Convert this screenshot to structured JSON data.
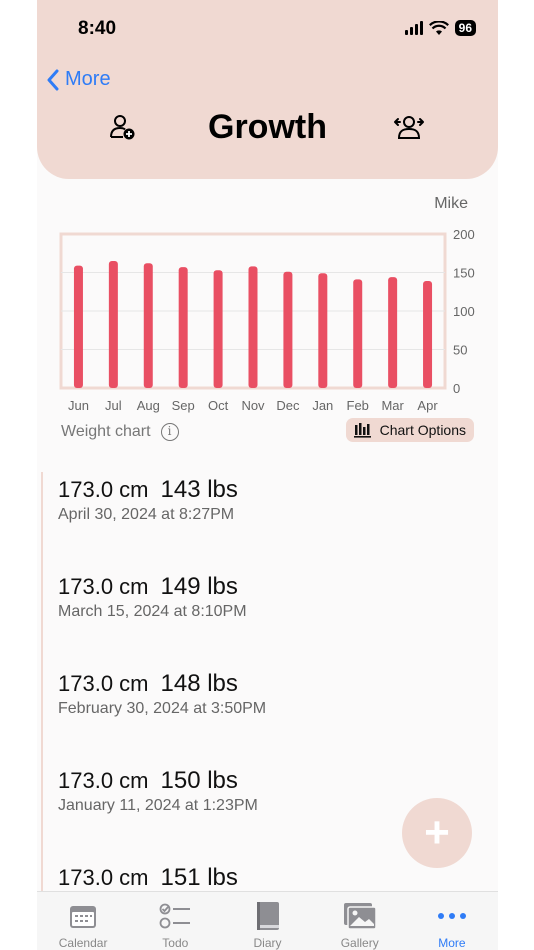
{
  "status": {
    "time": "8:40",
    "battery": "96"
  },
  "nav": {
    "back_label": "More",
    "title": "Growth"
  },
  "chart_owner": "Mike",
  "chart_data": {
    "type": "bar",
    "categories": [
      "Jun",
      "Jul",
      "Aug",
      "Sep",
      "Oct",
      "Nov",
      "Dec",
      "Jan",
      "Feb",
      "Mar",
      "Apr"
    ],
    "values": [
      159,
      165,
      162,
      157,
      153,
      158,
      151,
      149,
      141,
      144,
      139
    ],
    "ylim": [
      0,
      200
    ],
    "yticks": [
      0,
      50,
      100,
      150,
      200
    ],
    "grid": true,
    "color": "#e94f63"
  },
  "chart_footer": {
    "label": "Weight chart",
    "options_label": "Chart Options"
  },
  "entries": [
    {
      "height": "173.0 cm",
      "weight": "143 lbs",
      "date": "April 30, 2024 at 8:27PM"
    },
    {
      "height": "173.0 cm",
      "weight": "149 lbs",
      "date": "March 15, 2024 at 8:10PM"
    },
    {
      "height": "173.0 cm",
      "weight": "148 lbs",
      "date": "February 30, 2024 at 3:50PM"
    },
    {
      "height": "173.0 cm",
      "weight": "150 lbs",
      "date": "January 11, 2024 at 1:23PM"
    },
    {
      "height": "173.0 cm",
      "weight": "151 lbs",
      "date": ""
    }
  ],
  "fab": {
    "label": "+"
  },
  "tabs": [
    {
      "label": "Calendar",
      "icon": "calendar-icon"
    },
    {
      "label": "Todo",
      "icon": "todo-icon"
    },
    {
      "label": "Diary",
      "icon": "diary-icon"
    },
    {
      "label": "Gallery",
      "icon": "gallery-icon"
    },
    {
      "label": "More",
      "icon": "more-icon",
      "active": true
    }
  ],
  "colors": {
    "header": "#f0d9d2",
    "accent": "#2f7cf6",
    "bar": "#e94f63"
  }
}
